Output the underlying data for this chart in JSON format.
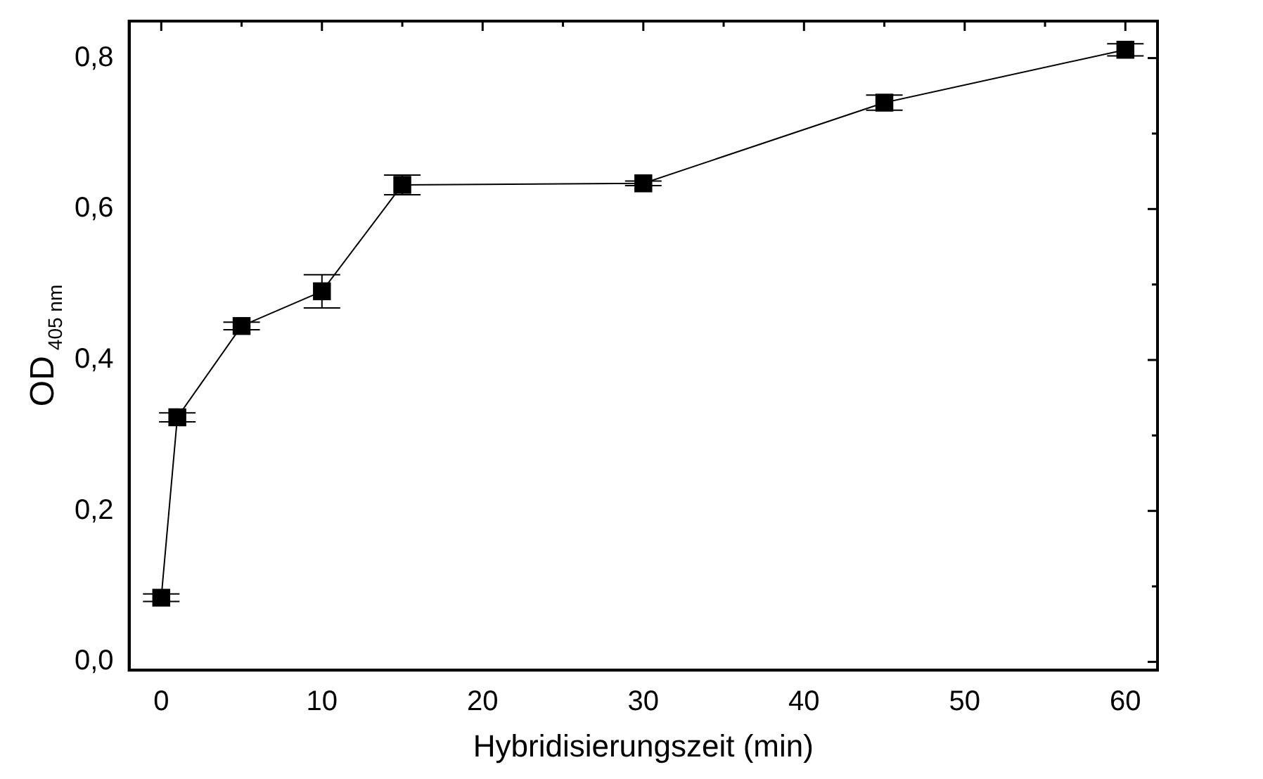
{
  "chart_data": {
    "type": "line",
    "xlabel": "Hybridisierungszeit (min)",
    "ylabel": "OD$_{405 nm}$",
    "x": [
      0,
      1,
      5,
      10,
      15,
      30,
      45,
      60
    ],
    "series": [
      {
        "color": "#000000",
        "values": [
          0.085,
          0.324,
          0.445,
          0.491,
          0.632,
          0.634,
          0.741,
          0.811
        ],
        "errors": [
          0.005,
          0.006,
          0.005,
          0.022,
          0.013,
          0.003,
          0.01,
          0.008
        ]
      }
    ],
    "marker": "square",
    "line_style": "solid",
    "grid": false,
    "legend": false,
    "xlim": [
      -2,
      62
    ],
    "ylim": [
      -0.011,
      0.849
    ],
    "xticks": [
      0,
      {
        "value": 5,
        "label": null
      },
      10,
      {
        "value": 15,
        "label": null
      },
      20,
      {
        "value": 25,
        "label": null
      },
      30,
      {
        "value": 35,
        "label": null
      },
      40,
      {
        "value": 45,
        "label": null
      },
      50,
      {
        "value": 55,
        "label": null
      },
      60
    ],
    "yticks": [
      {
        "value": 0,
        "label": "0,0"
      },
      {
        "value": 0.1,
        "label": null
      },
      {
        "value": 0.2,
        "label": "0,2"
      },
      {
        "value": 0.3,
        "label": null
      },
      {
        "value": 0.4,
        "label": "0,4"
      },
      {
        "value": 0.5,
        "label": null
      },
      {
        "value": 0.6,
        "label": "0,6"
      },
      {
        "value": 0.7,
        "label": null
      },
      {
        "value": 0.8,
        "label": "0,8"
      }
    ]
  }
}
